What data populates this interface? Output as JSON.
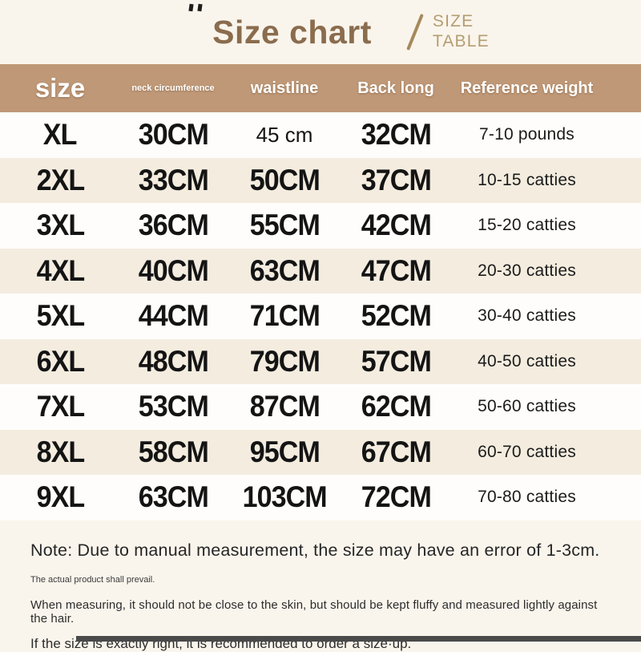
{
  "colors": {
    "page_bg": "#faf5ec",
    "header_bg": "#bf9877",
    "row_alt_bg": "#f3ecdf",
    "row_bg": "#fefdfb",
    "title_brown": "#8a6c4e",
    "subtitle_tan": "#b49d72",
    "text_dark": "#141414",
    "bottom_bar": "#4a4a4a"
  },
  "header": {
    "title": "Size chart",
    "subtitle_line1": "SIZE",
    "subtitle_line2": "TABLE"
  },
  "table": {
    "columns": [
      "size",
      "neck circumference",
      "waistline",
      "Back long",
      "Reference weight"
    ],
    "rows": [
      {
        "size": "XL",
        "neck": "30CM",
        "waist": "45 cm",
        "back": "32CM",
        "weight": "7-10 pounds"
      },
      {
        "size": "2XL",
        "neck": "33CM",
        "waist": "50CM",
        "back": "37CM",
        "weight": "10-15 catties"
      },
      {
        "size": "3XL",
        "neck": "36CM",
        "waist": "55CM",
        "back": "42CM",
        "weight": "15-20 catties"
      },
      {
        "size": "4XL",
        "neck": "40CM",
        "waist": "63CM",
        "back": "47CM",
        "weight": "20-30 catties"
      },
      {
        "size": "5XL",
        "neck": "44CM",
        "waist": "71CM",
        "back": "52CM",
        "weight": "30-40 catties"
      },
      {
        "size": "6XL",
        "neck": "48CM",
        "waist": "79CM",
        "back": "57CM",
        "weight": "40-50 catties"
      },
      {
        "size": "7XL",
        "neck": "53CM",
        "waist": "87CM",
        "back": "62CM",
        "weight": "50-60 catties"
      },
      {
        "size": "8XL",
        "neck": "58CM",
        "waist": "95CM",
        "back": "67CM",
        "weight": "60-70 catties"
      },
      {
        "size": "9XL",
        "neck": "63CM",
        "waist": "103CM",
        "back": "72CM",
        "weight": "70-80 catties"
      }
    ]
  },
  "notes": {
    "main": "Note: Due to manual measurement, the size may have an error of 1-3cm.",
    "secondary": "The actual product shall prevail.",
    "measuring": "When measuring, it should not be close to the skin, but should be kept fluffy and measured lightly against the hair.",
    "size_up": "If the size is exactly right, it is recommended to order a size·up."
  },
  "chart_data": {
    "type": "table",
    "title": "Size chart",
    "columns": [
      "size",
      "neck circumference",
      "waistline",
      "Back long",
      "Reference weight"
    ],
    "rows": [
      [
        "XL",
        "30CM",
        "45 cm",
        "32CM",
        "7-10 pounds"
      ],
      [
        "2XL",
        "33CM",
        "50CM",
        "37CM",
        "10-15 catties"
      ],
      [
        "3XL",
        "36CM",
        "55CM",
        "42CM",
        "15-20 catties"
      ],
      [
        "4XL",
        "40CM",
        "63CM",
        "47CM",
        "20-30 catties"
      ],
      [
        "5XL",
        "44CM",
        "71CM",
        "52CM",
        "30-40 catties"
      ],
      [
        "6XL",
        "48CM",
        "79CM",
        "57CM",
        "40-50 catties"
      ],
      [
        "7XL",
        "53CM",
        "87CM",
        "62CM",
        "50-60 catties"
      ],
      [
        "8XL",
        "58CM",
        "95CM",
        "67CM",
        "60-70 catties"
      ],
      [
        "9XL",
        "63CM",
        "103CM",
        "72CM",
        "70-80 catties"
      ]
    ]
  }
}
